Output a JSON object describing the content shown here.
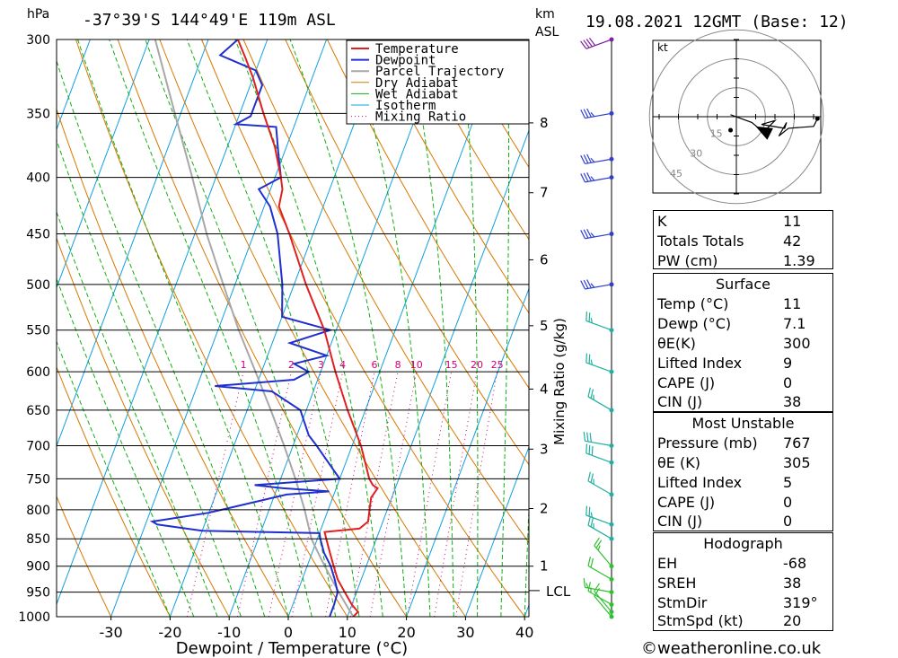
{
  "header": {
    "location": "-37°39'S 144°49'E 119m ASL",
    "datetime": "19.08.2021 12GMT (Base: 12)",
    "hpa_unit": "hPa",
    "km_unit": "km",
    "asl_unit": "ASL",
    "kt_unit": "kt",
    "lcl_label": "LCL",
    "credit": "©weatheronline.co.uk"
  },
  "colors": {
    "temperature": "#e02020",
    "dewpoint": "#2030d0",
    "parcel": "#a8a8a8",
    "dry_adiabat": "#d87800",
    "wet_adiabat": "#10b010",
    "isotherm": "#10a0e0",
    "mixing_ratio": "#d0007a"
  },
  "chart_data": {
    "type": "line",
    "xlabel": "Dewpoint / Temperature (°C)",
    "ylabel_right": "Mixing Ratio (g/kg)",
    "xlim": [
      -40,
      40
    ],
    "ylim": [
      1000,
      300
    ],
    "x_ticks": [
      -30,
      -20,
      -10,
      0,
      10,
      20,
      30,
      40
    ],
    "pressure_levels": [
      300,
      350,
      400,
      450,
      500,
      550,
      600,
      650,
      700,
      750,
      800,
      850,
      900,
      950,
      1000
    ],
    "km_ticks": [
      {
        "km": 1,
        "p": 900
      },
      {
        "km": 2,
        "p": 798
      },
      {
        "km": 3,
        "p": 705
      },
      {
        "km": 4,
        "p": 622
      },
      {
        "km": 5,
        "p": 545
      },
      {
        "km": 6,
        "p": 475
      },
      {
        "km": 7,
        "p": 413
      },
      {
        "km": 8,
        "p": 357
      }
    ],
    "lcl_pressure": 947,
    "mixing_ratio_labels": [
      "1",
      "2",
      "3",
      "4",
      "6",
      "8",
      "10",
      "15",
      "20",
      "25"
    ],
    "mixing_ratio_values": [
      1,
      2,
      3,
      4,
      6,
      8,
      10,
      15,
      20,
      25
    ],
    "mixing_ratio_label_pressure": 600,
    "legend": [
      {
        "key": "temperature",
        "label": "Temperature"
      },
      {
        "key": "dewpoint",
        "label": "Dewpoint"
      },
      {
        "key": "parcel",
        "label": "Parcel Trajectory"
      },
      {
        "key": "dry_adiabat",
        "label": "Dry Adiabat"
      },
      {
        "key": "wet_adiabat",
        "label": "Wet Adiabat"
      },
      {
        "key": "isotherm",
        "label": "Isotherm"
      },
      {
        "key": "mixing_ratio",
        "label": "Mixing Ratio"
      }
    ],
    "series": {
      "temperature": [
        [
          1000,
          11
        ],
        [
          990,
          11.5
        ],
        [
          975,
          10
        ],
        [
          950,
          8
        ],
        [
          925,
          6
        ],
        [
          900,
          4.5
        ],
        [
          875,
          3
        ],
        [
          850,
          1.5
        ],
        [
          838,
          0.8
        ],
        [
          832,
          6.5
        ],
        [
          820,
          7.5
        ],
        [
          800,
          7
        ],
        [
          780,
          6.5
        ],
        [
          765,
          7
        ],
        [
          760,
          6
        ],
        [
          750,
          5
        ],
        [
          700,
          1.5
        ],
        [
          650,
          -3
        ],
        [
          600,
          -7.5
        ],
        [
          550,
          -12
        ],
        [
          500,
          -18
        ],
        [
          450,
          -24
        ],
        [
          425,
          -27.5
        ],
        [
          410,
          -28
        ],
        [
          400,
          -29
        ],
        [
          375,
          -32
        ],
        [
          350,
          -36
        ],
        [
          325,
          -40
        ],
        [
          312,
          -42.5
        ],
        [
          300,
          -45
        ]
      ],
      "dewpoint": [
        [
          1000,
          7
        ],
        [
          975,
          7
        ],
        [
          950,
          6.8
        ],
        [
          925,
          5.5
        ],
        [
          900,
          4
        ],
        [
          875,
          2
        ],
        [
          850,
          0.5
        ],
        [
          840,
          0
        ],
        [
          836,
          -20
        ],
        [
          825,
          -28
        ],
        [
          820,
          -29
        ],
        [
          805,
          -20
        ],
        [
          775,
          -8
        ],
        [
          770,
          -1
        ],
        [
          765,
          -9
        ],
        [
          760,
          -14
        ],
        [
          750,
          0
        ],
        [
          700,
          -6
        ],
        [
          685,
          -8
        ],
        [
          650,
          -11
        ],
        [
          625,
          -17
        ],
        [
          618,
          -27
        ],
        [
          610,
          -14
        ],
        [
          600,
          -12
        ],
        [
          590,
          -15
        ],
        [
          580,
          -10
        ],
        [
          565,
          -17
        ],
        [
          550,
          -11
        ],
        [
          535,
          -20
        ],
        [
          500,
          -22
        ],
        [
          450,
          -26
        ],
        [
          425,
          -29
        ],
        [
          410,
          -32
        ],
        [
          400,
          -29
        ],
        [
          380,
          -31
        ],
        [
          360,
          -33
        ],
        [
          358,
          -40
        ],
        [
          352,
          -38
        ],
        [
          348,
          -38
        ],
        [
          330,
          -38
        ],
        [
          320,
          -40
        ],
        [
          310,
          -47
        ],
        [
          300,
          -45
        ]
      ],
      "parcel": [
        [
          1000,
          11
        ],
        [
          975,
          9
        ],
        [
          950,
          7
        ],
        [
          925,
          5
        ],
        [
          900,
          3
        ],
        [
          875,
          1
        ],
        [
          850,
          -1
        ],
        [
          800,
          -4
        ],
        [
          750,
          -7.5
        ],
        [
          700,
          -11.5
        ],
        [
          650,
          -16
        ],
        [
          600,
          -21
        ],
        [
          550,
          -26.5
        ],
        [
          500,
          -32
        ],
        [
          450,
          -38
        ],
        [
          400,
          -44
        ],
        [
          350,
          -51
        ],
        [
          300,
          -59
        ]
      ]
    },
    "wind_barbs": [
      {
        "p": 1000,
        "dir": 320,
        "kt": 10
      },
      {
        "p": 990,
        "dir": 320,
        "kt": 10
      },
      {
        "p": 975,
        "dir": 300,
        "kt": 15
      },
      {
        "p": 950,
        "dir": 280,
        "kt": 15
      },
      {
        "p": 925,
        "dir": 300,
        "kt": 20
      },
      {
        "p": 900,
        "dir": 320,
        "kt": 25
      },
      {
        "p": 850,
        "dir": 300,
        "kt": 25
      },
      {
        "p": 825,
        "dir": 290,
        "kt": 25
      },
      {
        "p": 775,
        "dir": 300,
        "kt": 25
      },
      {
        "p": 725,
        "dir": 290,
        "kt": 30
      },
      {
        "p": 700,
        "dir": 280,
        "kt": 30
      },
      {
        "p": 650,
        "dir": 300,
        "kt": 25
      },
      {
        "p": 600,
        "dir": 290,
        "kt": 25
      },
      {
        "p": 550,
        "dir": 290,
        "kt": 25
      },
      {
        "p": 500,
        "dir": 260,
        "kt": 35
      },
      {
        "p": 450,
        "dir": 260,
        "kt": 35
      },
      {
        "p": 400,
        "dir": 260,
        "kt": 35
      },
      {
        "p": 385,
        "dir": 260,
        "kt": 35
      },
      {
        "p": 350,
        "dir": 260,
        "kt": 35
      },
      {
        "p": 300,
        "dir": 250,
        "kt": 40
      }
    ],
    "hodograph": {
      "ring_labels": [
        "15",
        "30",
        "45"
      ],
      "ring_values": [
        15,
        30,
        45
      ],
      "trace_kt": [
        [
          -3,
          1
        ],
        [
          8,
          -3
        ],
        [
          14,
          -8
        ],
        [
          20,
          -2
        ],
        [
          13,
          -4
        ],
        [
          25,
          -6
        ],
        [
          26,
          -3
        ],
        [
          22,
          -10
        ],
        [
          27,
          -6
        ],
        [
          40,
          -5
        ],
        [
          42,
          -1
        ]
      ],
      "storm_kt": [
        -3,
        -7
      ]
    }
  },
  "table": {
    "block1": [
      {
        "label": "K",
        "value": "11"
      },
      {
        "label": "Totals Totals",
        "value": "42"
      },
      {
        "label": "PW (cm)",
        "value": "1.39"
      }
    ],
    "surface_title": "Surface",
    "surface": [
      {
        "label": "Temp (°C)",
        "value": "11"
      },
      {
        "label": "Dewp (°C)",
        "value": "7.1"
      },
      {
        "label": "θE(K)",
        "value": "300"
      },
      {
        "label": "Lifted Index",
        "value": "9"
      },
      {
        "label": "CAPE (J)",
        "value": "0"
      },
      {
        "label": "CIN (J)",
        "value": "38"
      }
    ],
    "unstable_title": "Most Unstable",
    "unstable": [
      {
        "label": "Pressure (mb)",
        "value": "767"
      },
      {
        "label": "θE (K)",
        "value": "305"
      },
      {
        "label": "Lifted Index",
        "value": "5"
      },
      {
        "label": "CAPE (J)",
        "value": "0"
      },
      {
        "label": "CIN (J)",
        "value": "0"
      }
    ],
    "hodograph_title": "Hodograph",
    "hodograph": [
      {
        "label": "EH",
        "value": "-68"
      },
      {
        "label": "SREH",
        "value": "38"
      },
      {
        "label": "StmDir",
        "value": "319°"
      },
      {
        "label": "StmSpd (kt)",
        "value": "20"
      }
    ]
  }
}
